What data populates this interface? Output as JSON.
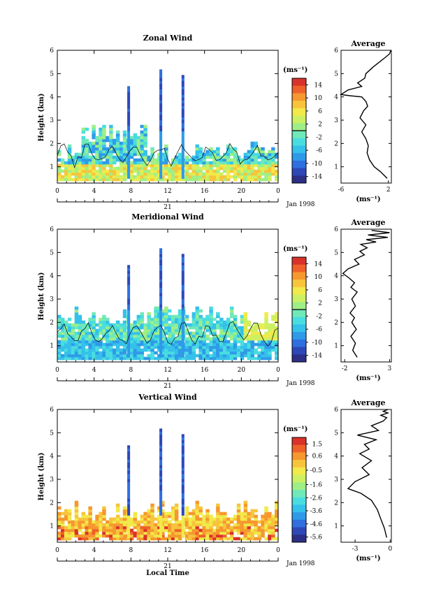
{
  "chart_data": [
    {
      "type": "heatmap",
      "title": "Zonal Wind",
      "ylabel": "Height (km)",
      "xlim": [
        0,
        24
      ],
      "ylim": [
        0.3,
        6
      ],
      "xticks": [
        "0",
        "4",
        "8",
        "12",
        "16",
        "20",
        "0"
      ],
      "yticks": [
        "1",
        "2",
        "3",
        "4",
        "5",
        "6"
      ],
      "day_label": "21",
      "date_label": "Jan 1998",
      "colorbar": {
        "unit": "(ms⁻¹)",
        "ticks": [
          "14",
          "10",
          "6",
          "2",
          "-2",
          "-6",
          "-10",
          "-14"
        ],
        "range": [
          -16,
          16
        ],
        "zero_line": 0
      },
      "profile": {
        "title": "Average",
        "xlabel": "(ms⁻¹)",
        "xticks": [
          "-6",
          "2"
        ],
        "xlim": [
          -6,
          2.5
        ],
        "yticks": [
          "1",
          "2",
          "3",
          "4",
          "5",
          "6"
        ],
        "x": [
          1.8,
          0.6,
          -0.4,
          -1.2,
          -1.6,
          -1.4,
          -1.8,
          -2.5,
          -1.8,
          -2.8,
          -2.2,
          -1.5,
          -1.8,
          -2.5,
          -4.5,
          -6.0,
          -4.8,
          -2.5,
          -3.2,
          -2.0,
          -1.8,
          -0.5,
          0.5,
          1.5,
          2.2,
          2.4
        ],
        "y": [
          0.5,
          0.8,
          1.0,
          1.3,
          1.6,
          1.9,
          2.2,
          2.5,
          2.8,
          3.1,
          3.4,
          3.6,
          3.8,
          4.0,
          4.05,
          4.1,
          4.3,
          4.45,
          4.6,
          4.8,
          5.0,
          5.3,
          5.5,
          5.7,
          5.85,
          6.0
        ]
      }
    },
    {
      "type": "heatmap",
      "title": "Meridional Wind",
      "ylabel": "Height (km)",
      "xlim": [
        0,
        24
      ],
      "ylim": [
        0.3,
        6
      ],
      "xticks": [
        "0",
        "4",
        "8",
        "12",
        "16",
        "20",
        "0"
      ],
      "yticks": [
        "1",
        "2",
        "3",
        "4",
        "5",
        "6"
      ],
      "day_label": "21",
      "date_label": "Jan 1998",
      "colorbar": {
        "unit": "(ms⁻¹)",
        "ticks": [
          "14",
          "10",
          "6",
          "2",
          "-2",
          "-6",
          "-10",
          "-14"
        ],
        "range": [
          -16,
          16
        ],
        "zero_line": 0
      },
      "profile": {
        "title": "Average",
        "xlabel": "(ms⁻¹)",
        "xticks": [
          "-2",
          "3"
        ],
        "xlim": [
          -2.4,
          3.2
        ],
        "yticks": [
          "1",
          "2",
          "3",
          "4",
          "5",
          "6"
        ],
        "x": [
          -0.6,
          -1.1,
          -0.8,
          -1.3,
          -0.7,
          -1.2,
          -0.9,
          -1.4,
          -0.8,
          -1.2,
          -0.6,
          -1.3,
          -0.9,
          -1.5,
          -2.2,
          -1.6,
          -0.4,
          -0.9,
          0.2,
          -0.3,
          0.5,
          -0.2,
          1.5,
          0.4,
          2.8,
          0.6,
          3.0,
          1.0
        ],
        "y": [
          0.5,
          0.8,
          1.1,
          1.4,
          1.7,
          2.0,
          2.2,
          2.4,
          2.7,
          3.0,
          3.3,
          3.5,
          3.7,
          3.9,
          4.1,
          4.3,
          4.5,
          4.7,
          4.9,
          5.05,
          5.2,
          5.35,
          5.45,
          5.55,
          5.65,
          5.75,
          5.85,
          5.95
        ]
      }
    },
    {
      "type": "heatmap",
      "title": "Vertical Wind",
      "ylabel": "Height (km)",
      "xlabel": "Local Time",
      "xlim": [
        0,
        24
      ],
      "ylim": [
        0.3,
        6
      ],
      "xticks": [
        "0",
        "4",
        "8",
        "12",
        "16",
        "20",
        "0"
      ],
      "yticks": [
        "1",
        "2",
        "3",
        "4",
        "5",
        "6"
      ],
      "day_label": "21",
      "date_label": "Jan 1998",
      "colorbar": {
        "unit": "(ms⁻¹)",
        "ticks": [
          "1.5",
          "0.6",
          "-0.5",
          "-1.6",
          "-2.6",
          "-3.6",
          "-4.6",
          "-5.6"
        ],
        "range": [
          -6,
          2
        ],
        "zero_line": null
      },
      "profile": {
        "title": "Average",
        "xlabel": "(ms⁻¹)",
        "xticks": [
          "-3",
          "0"
        ],
        "xlim": [
          -4.2,
          0.1
        ],
        "yticks": [
          "1",
          "2",
          "3",
          "4",
          "5",
          "6"
        ],
        "x": [
          -0.3,
          -0.5,
          -0.8,
          -1.1,
          -1.6,
          -2.5,
          -3.6,
          -3.0,
          -1.8,
          -2.4,
          -1.6,
          -2.6,
          -1.8,
          -2.2,
          -1.2,
          -2.8,
          -1.0,
          -1.6,
          -0.6,
          -0.3,
          -0.8,
          -0.2,
          -0.6,
          -0.2
        ],
        "y": [
          0.5,
          0.9,
          1.3,
          1.7,
          2.1,
          2.4,
          2.6,
          2.9,
          3.2,
          3.5,
          3.8,
          4.1,
          4.3,
          4.5,
          4.7,
          4.9,
          5.1,
          5.3,
          5.5,
          5.65,
          5.75,
          5.85,
          5.92,
          6.0
        ]
      }
    }
  ]
}
